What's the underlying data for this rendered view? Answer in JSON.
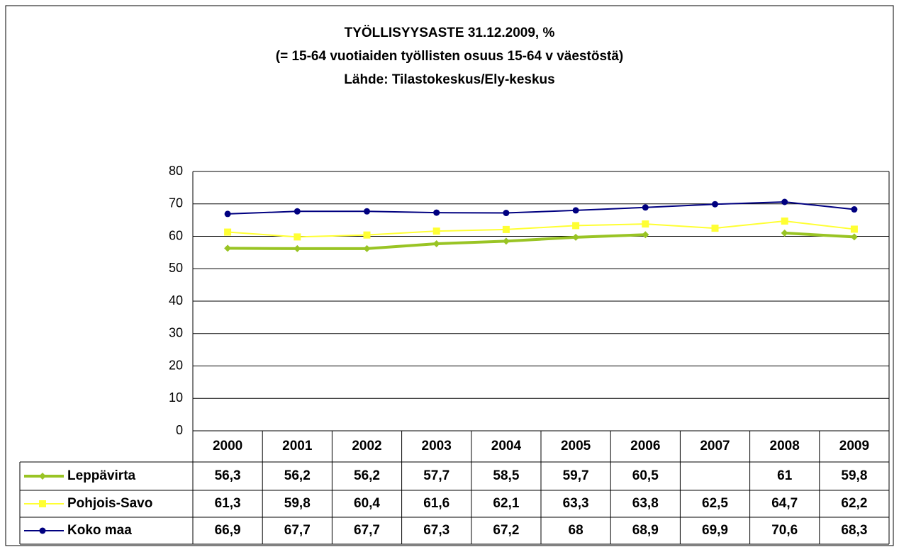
{
  "chart_data": {
    "type": "line",
    "title": "TYÖLLISYYSASTE 31.12.2009,   %",
    "subtitle": "(= 15-64 vuotiaiden työllisten osuus 15-64 v  väestöstä)",
    "source": "Lähde: Tilastokeskus/Ely-keskus",
    "categories": [
      "2000",
      "2001",
      "2002",
      "2003",
      "2004",
      "2005",
      "2006",
      "2007",
      "2008",
      "2009"
    ],
    "series": [
      {
        "name": "Leppävirta",
        "color": "#99c424",
        "marker": "diamond",
        "values": [
          56.3,
          56.2,
          56.2,
          57.7,
          58.5,
          59.7,
          60.5,
          null,
          61,
          59.8
        ],
        "value_labels": [
          "56,3",
          "56,2",
          "56,2",
          "57,7",
          "58,5",
          "59,7",
          "60,5",
          null,
          "61",
          "59,8"
        ]
      },
      {
        "name": "Pohjois-Savo",
        "color": "#ffff33",
        "marker": "square",
        "values": [
          61.3,
          59.8,
          60.4,
          61.6,
          62.1,
          63.3,
          63.8,
          62.5,
          64.7,
          62.2
        ],
        "value_labels": [
          "61,3",
          "59,8",
          "60,4",
          "61,6",
          "62,1",
          "63,3",
          "63,8",
          "62,5",
          "64,7",
          "62,2"
        ]
      },
      {
        "name": "Koko maa",
        "color": "#000080",
        "marker": "circle",
        "values": [
          66.9,
          67.7,
          67.7,
          67.3,
          67.2,
          68,
          68.9,
          69.9,
          70.6,
          68.3
        ],
        "value_labels": [
          "66,9",
          "67,7",
          "67,7",
          "67,3",
          "67,2",
          "68",
          "68,9",
          "69,9",
          "70,6",
          "68,3"
        ]
      }
    ],
    "ylim": [
      0,
      80
    ],
    "yticks": [
      0,
      10,
      20,
      30,
      40,
      50,
      60,
      70,
      80
    ],
    "grid": true
  }
}
